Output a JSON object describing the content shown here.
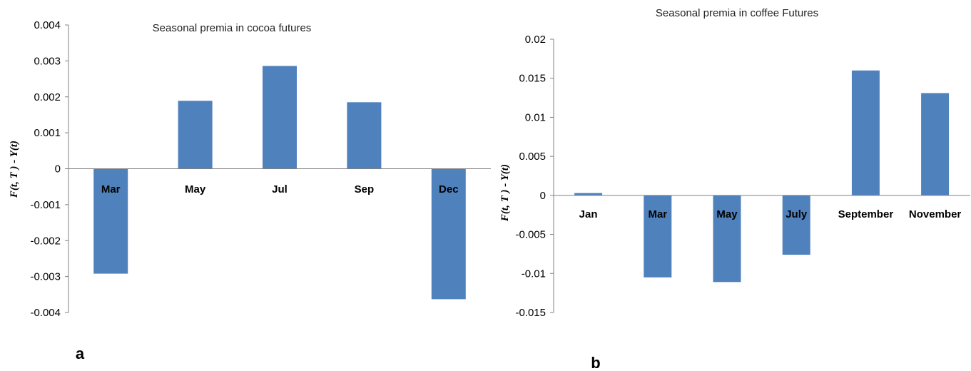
{
  "chart_data": [
    {
      "type": "bar",
      "panel_label": "a",
      "title": "Seasonal premia in cocoa futures",
      "ylabel": "F(t, T ) - Y(t)",
      "categories": [
        "Mar",
        "May",
        "Jul",
        "Sep",
        "Dec"
      ],
      "values": [
        -0.00292,
        0.00189,
        0.00286,
        0.00185,
        -0.00363
      ],
      "ylim": [
        -0.004,
        0.004
      ],
      "yticks": [
        0.004,
        0.003,
        0.002,
        0.001,
        0,
        -0.001,
        -0.002,
        -0.003,
        -0.004
      ],
      "ytick_labels": [
        "0.004",
        "0.003",
        "0.002",
        "0.001",
        "0",
        "-0.001",
        "-0.002",
        "-0.003",
        "-0.004"
      ],
      "grid": false,
      "legend": "none",
      "bar_color": "#4f81bd"
    },
    {
      "type": "bar",
      "panel_label": "b",
      "title": "Seasonal premia in coffee Futures",
      "ylabel": "F(t, T ) - Y(t)",
      "categories": [
        "Jan",
        "Mar",
        "May",
        "July",
        "September",
        "November"
      ],
      "values": [
        0.0003,
        -0.0105,
        -0.0111,
        -0.0076,
        0.016,
        0.0131
      ],
      "ylim": [
        -0.015,
        0.02
      ],
      "yticks": [
        0.02,
        0.015,
        0.01,
        0.005,
        0,
        -0.005,
        -0.01,
        -0.015
      ],
      "ytick_labels": [
        "0.02",
        "0.015",
        "0.01",
        "0.005",
        "0",
        "-0.005",
        "-0.01",
        "-0.015"
      ],
      "grid": false,
      "legend": "none",
      "bar_color": "#4f81bd"
    }
  ]
}
